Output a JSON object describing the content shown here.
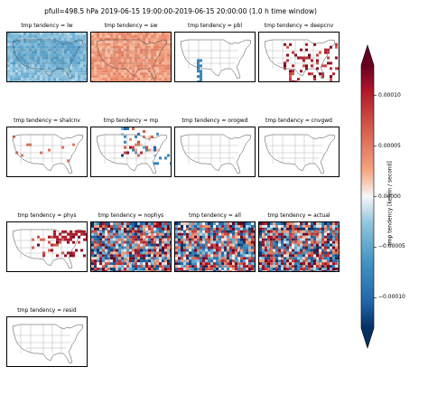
{
  "figure": {
    "suptitle": "pfull=498.5 hPa 2019-06-15 19:00:00-2019-06-15 20:00:00 (1.0 h time window)"
  },
  "chart_data": {
    "type": "heatmap",
    "map_region": "continental-us",
    "panels": [
      {
        "title": "tmp tendency = lw",
        "pattern": "lw"
      },
      {
        "title": "tmp tendency = sw",
        "pattern": "sw"
      },
      {
        "title": "tmp tendency = pbl",
        "pattern": "pbl"
      },
      {
        "title": "tmp tendency = deepcnv",
        "pattern": "deepcnv"
      },
      {
        "title": "tmp tendency = shalcnv",
        "pattern": "shalcnv"
      },
      {
        "title": "tmp tendency = mp",
        "pattern": "mp"
      },
      {
        "title": "tmp tendency = orogwd",
        "pattern": "blank"
      },
      {
        "title": "tmp tendency = cnvgwd",
        "pattern": "blank"
      },
      {
        "title": "tmp tendency = phys",
        "pattern": "phys"
      },
      {
        "title": "tmp tendency = nophys",
        "pattern": "noisy"
      },
      {
        "title": "tmp tendency = all",
        "pattern": "noisy"
      },
      {
        "title": "tmp tendency = actual",
        "pattern": "noisy"
      },
      {
        "title": "tmp tendency = resid",
        "pattern": "blank"
      }
    ],
    "colorbar": {
      "label": "tmp tendency [kelvin / second]",
      "colormap": "RdBu_r",
      "vmin": -0.00013,
      "vmax": 0.00013,
      "extend": "both",
      "ticks": [
        -0.0001,
        -5e-05,
        0.0,
        5e-05,
        0.0001
      ],
      "tick_labels": [
        "−0.00010",
        "−0.00005",
        "0.00000",
        "0.00005",
        "0.00010"
      ],
      "colors": {
        "low": "#053061",
        "mid": "#f7f7f7",
        "high": "#67001f"
      }
    }
  }
}
